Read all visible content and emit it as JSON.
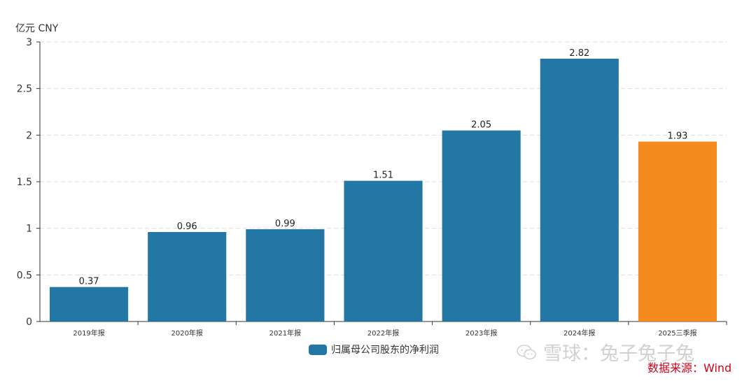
{
  "chart_data": {
    "type": "bar",
    "unit_label": "亿元  CNY",
    "categories": [
      "2019年报",
      "2020年报",
      "2021年报",
      "2022年报",
      "2023年报",
      "2024年报",
      "2025三季报"
    ],
    "series": [
      {
        "name": "归属母公司股东的净利润",
        "values": [
          0.37,
          0.96,
          0.99,
          1.51,
          2.05,
          2.82,
          1.93
        ]
      }
    ],
    "data_labels": [
      "0.37",
      "0.96",
      "0.99",
      "1.51",
      "2.05",
      "2.82",
      "1.93"
    ],
    "highlight_index": 6,
    "yticks": [
      "0",
      "0.5",
      "1",
      "1.5",
      "2",
      "2.5",
      "3"
    ],
    "ylim": [
      0,
      3
    ],
    "grid": "horizontal-dashed",
    "legend_position": "bottom-center",
    "colors": {
      "bar": "#2277a5",
      "highlight": "#f58a1f",
      "grid": "#dddddd",
      "axis": "#333333"
    }
  },
  "watermark": {
    "icon": "wechat-icon",
    "text": "雪球：兔子兔子兔"
  },
  "source": "数据来源：Wind"
}
